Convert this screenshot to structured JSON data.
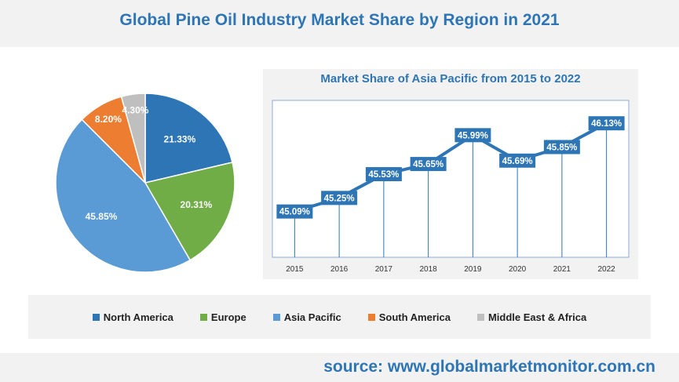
{
  "header": {
    "title": "Global Pine Oil Industry Market Share by Region in 2021"
  },
  "colors": {
    "North America": "#2e75b6",
    "Europe": "#70ad47",
    "Asia Pacific": "#5b9bd5",
    "South America": "#ed7d31",
    "Middle East & Africa": "#bfbfbf",
    "line": "#2e75b6"
  },
  "chart_data": [
    {
      "type": "pie",
      "title": "",
      "slices": [
        {
          "name": "North America",
          "value": 21.33,
          "label": "21.33%"
        },
        {
          "name": "Europe",
          "value": 20.31,
          "label": "20.31%"
        },
        {
          "name": "Asia Pacific",
          "value": 45.85,
          "label": "45.85%"
        },
        {
          "name": "South America",
          "value": 8.2,
          "label": "8.20%"
        },
        {
          "name": "Middle East & Africa",
          "value": 4.3,
          "label": "4.30%"
        }
      ],
      "legend_position": "bottom"
    },
    {
      "type": "line",
      "title": "Market Share of Asia Pacific from 2015 to 2022",
      "categories": [
        "2015",
        "2016",
        "2017",
        "2018",
        "2019",
        "2020",
        "2021",
        "2022"
      ],
      "values": [
        45.09,
        45.25,
        45.53,
        45.65,
        45.99,
        45.69,
        45.85,
        46.13
      ],
      "labels": [
        "45.09%",
        "45.25%",
        "45.53%",
        "45.65%",
        "45.99%",
        "45.69%",
        "45.85%",
        "46.13%"
      ],
      "ylim": [
        44.55,
        46.4
      ],
      "grid": false
    }
  ],
  "legend": {
    "items": [
      "North America",
      "Europe",
      "Asia Pacific",
      "South America",
      "Middle East & Africa"
    ]
  },
  "footer": {
    "source": "source: www.globalmarketmonitor.com.cn"
  }
}
